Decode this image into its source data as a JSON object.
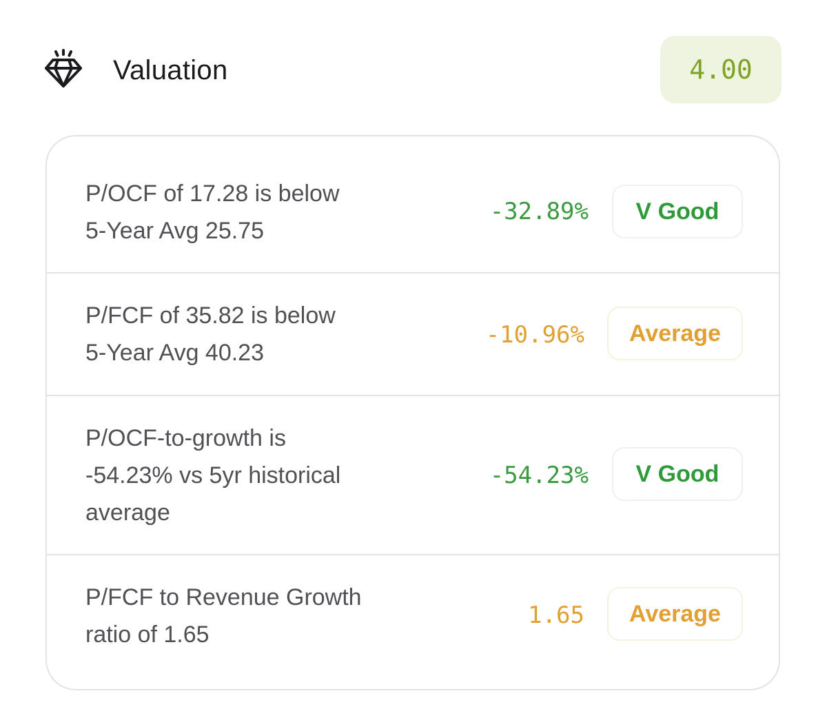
{
  "section": {
    "icon": "diamond-icon",
    "title": "Valuation",
    "score": "4.00",
    "score_color": "#7fa323",
    "score_bg": "#eff4e0"
  },
  "rows": [
    {
      "text_lines": [
        "P/OCF of 17.28 is below",
        "5-Year Avg 25.75"
      ],
      "value": "-32.89%",
      "rating": "V Good",
      "tone": "good"
    },
    {
      "text_lines": [
        "P/FCF of 35.82 is below",
        "5-Year Avg 40.23"
      ],
      "value": "-10.96%",
      "rating": "Average",
      "tone": "average"
    },
    {
      "text_lines": [
        "P/OCF-to-growth is",
        "-54.23% vs 5yr historical",
        "average"
      ],
      "value": "-54.23%",
      "rating": "V Good",
      "tone": "good"
    },
    {
      "text_lines": [
        "P/FCF to Revenue Growth",
        "ratio of 1.65"
      ],
      "value": "1.65",
      "rating": "Average",
      "tone": "average"
    }
  ],
  "colors": {
    "good": "#3a9a3e",
    "average": "#e0a032",
    "border": "#e3e3e5"
  }
}
